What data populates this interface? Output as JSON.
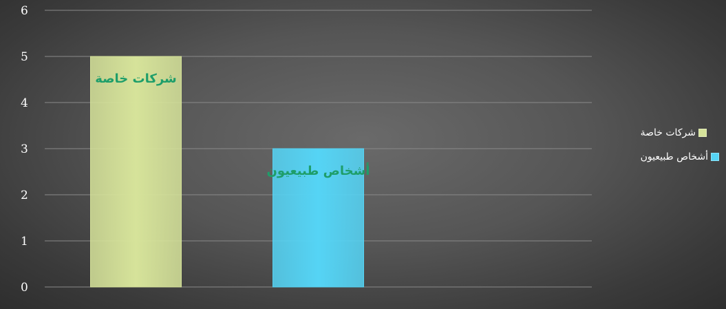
{
  "chart_data": {
    "type": "bar",
    "categories": [
      "شركات خاصة",
      "أشخاص طبيعيون"
    ],
    "values": [
      5,
      3
    ],
    "colors": [
      "#d6e39a",
      "#55d4f5"
    ],
    "data_labels": [
      "شركات خاصة",
      "أشخاص طبيعيون"
    ],
    "ylim": [
      0,
      6
    ],
    "yticks": [
      "0",
      "1",
      "2",
      "3",
      "4",
      "5",
      "6"
    ],
    "grid": true,
    "legend_position": "right",
    "legend": [
      {
        "label": "شركات خاصة",
        "color": "#d6e39a"
      },
      {
        "label": "أشخاص طبيعيون",
        "color": "#55d4f5"
      }
    ]
  }
}
